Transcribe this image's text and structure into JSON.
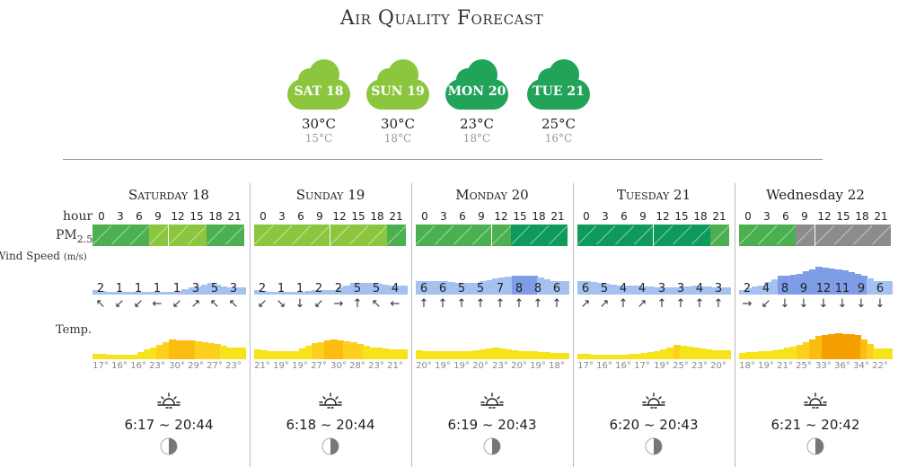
{
  "title": "Air Quality Forecast",
  "summary": [
    {
      "label": "SAT 18",
      "high": "30°C",
      "low": "15°C",
      "color": "#8cc63f"
    },
    {
      "label": "SUN 19",
      "high": "30°C",
      "low": "18°C",
      "color": "#8cc63f"
    },
    {
      "label": "MON 20",
      "high": "23°C",
      "low": "18°C",
      "color": "#21a35a"
    },
    {
      "label": "TUE 21",
      "high": "25°C",
      "low": "16°C",
      "color": "#21a35a"
    }
  ],
  "row_labels": {
    "hour": "hour",
    "pm": "PM",
    "pm_sub": "2.5",
    "wind": "Wind Speed",
    "wind_unit": "(m/s)",
    "temp": "Temp."
  },
  "hours": [
    "0",
    "3",
    "6",
    "9",
    "12",
    "15",
    "18",
    "21"
  ],
  "pm_colors": {
    "light": "#8cc63f",
    "mid": "#4caf50",
    "dark": "#0e9a5a",
    "gray": "#8c8c8c"
  },
  "days": [
    {
      "name": "Saturday 18",
      "small_caps": true,
      "pm": [
        "mid",
        "mid",
        "mid",
        "light",
        "light",
        "light",
        "mid",
        "mid"
      ],
      "wind": [
        "2",
        "1",
        "1",
        "1",
        "1",
        "3",
        "5",
        "3"
      ],
      "arrows": [
        "↖",
        "↙",
        "↙",
        "←",
        "↙",
        "↗",
        "↖",
        "↖"
      ],
      "temps": [
        "17°",
        "16°",
        "16°",
        "23°",
        "30°",
        "29°",
        "27°",
        "23°"
      ],
      "sunrise_sunset": "6:17 ~ 20:44"
    },
    {
      "name": "Sunday 19",
      "small_caps": true,
      "pm": [
        "light",
        "light",
        "light",
        "light",
        "light",
        "light",
        "light",
        "mid"
      ],
      "wind": [
        "2",
        "1",
        "1",
        "2",
        "2",
        "5",
        "5",
        "4"
      ],
      "arrows": [
        "↙",
        "↘",
        "↓",
        "↙",
        "→",
        "↑",
        "↖",
        "←"
      ],
      "temps": [
        "21°",
        "19°",
        "19°",
        "27°",
        "30°",
        "28°",
        "23°",
        "21°"
      ],
      "sunrise_sunset": "6:18 ~ 20:44"
    },
    {
      "name": "Monday 20",
      "small_caps": true,
      "pm": [
        "mid",
        "mid",
        "mid",
        "mid",
        "mid",
        "dark",
        "dark",
        "dark"
      ],
      "wind": [
        "6",
        "6",
        "5",
        "5",
        "7",
        "8",
        "8",
        "6"
      ],
      "arrows": [
        "↑",
        "↑",
        "↑",
        "↑",
        "↑",
        "↑",
        "↑",
        "↑"
      ],
      "temps": [
        "20°",
        "19°",
        "19°",
        "20°",
        "23°",
        "20°",
        "19°",
        "18°"
      ],
      "sunrise_sunset": "6:19 ~ 20:43"
    },
    {
      "name": "Tuesday 21",
      "small_caps": true,
      "pm": [
        "dark",
        "dark",
        "dark",
        "dark",
        "dark",
        "dark",
        "dark",
        "mid"
      ],
      "wind": [
        "6",
        "5",
        "4",
        "4",
        "3",
        "3",
        "4",
        "3"
      ],
      "arrows": [
        "↗",
        "↗",
        "↑",
        "↗",
        "↑",
        "↑",
        "↑",
        "↑"
      ],
      "temps": [
        "17°",
        "16°",
        "16°",
        "17°",
        "19°",
        "25°",
        "23°",
        "20°"
      ],
      "sunrise_sunset": "6:20 ~ 20:43"
    },
    {
      "name": "Wednesday 22",
      "small_caps": false,
      "pm": [
        "mid",
        "mid",
        "mid",
        "gray",
        "gray",
        "gray",
        "gray",
        "gray"
      ],
      "wind": [
        "2",
        "4",
        "8",
        "9",
        "12",
        "11",
        "9",
        "6"
      ],
      "arrows": [
        "→",
        "↙",
        "↓",
        "↓",
        "↓",
        "↓",
        "↓",
        "↓"
      ],
      "temps": [
        "18°",
        "19°",
        "21°",
        "25°",
        "33°",
        "36°",
        "34°",
        "22°"
      ],
      "sunrise_sunset": "6:21 ~ 20:42"
    }
  ]
}
